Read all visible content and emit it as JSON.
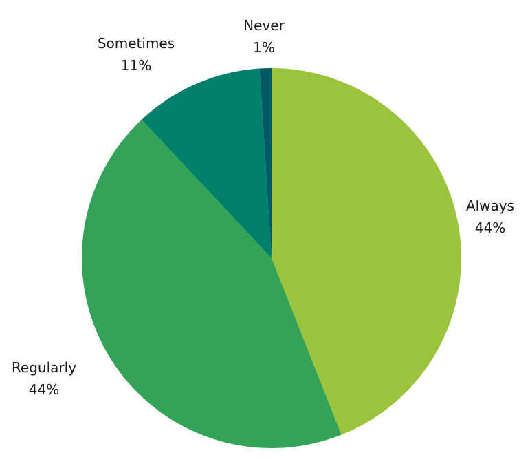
{
  "chart_data": {
    "type": "pie",
    "start": "top",
    "direction": "clockwise",
    "slices": [
      {
        "label": "Always",
        "value": 44,
        "display": "44%",
        "color": "#9bc33b"
      },
      {
        "label": "Regularly",
        "value": 44,
        "display": "44%",
        "color": "#33a457"
      },
      {
        "label": "Sometimes",
        "value": 11,
        "display": "11%",
        "color": "#00806a"
      },
      {
        "label": "Never",
        "value": 1,
        "display": "1%",
        "color": "#005a66"
      }
    ]
  }
}
